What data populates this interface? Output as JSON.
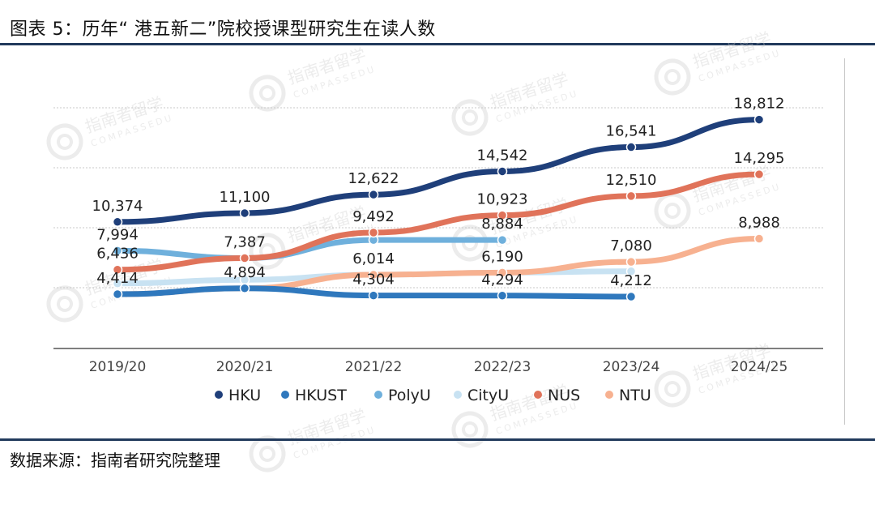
{
  "title": "图表 5：历年“ 港五新二”院校授课型研究生在读人数",
  "source": "数据来源：指南者研究院整理",
  "watermark": {
    "main": "指南者留学",
    "sub": "COMPASSEDU"
  },
  "chart_data": {
    "type": "line",
    "categories": [
      "2019/20",
      "2020/21",
      "2021/22",
      "2022/23",
      "2023/24",
      "2024/25"
    ],
    "ylim": [
      0,
      20000
    ],
    "grid": true,
    "legend": "bottom",
    "series": [
      {
        "name": "HKU",
        "color": "#1f3f7a",
        "values": [
          10374,
          11100,
          12622,
          14542,
          16541,
          18812
        ],
        "labels": [
          "10,374",
          "11,100",
          "12,622",
          "14,542",
          "16,541",
          "18,812"
        ]
      },
      {
        "name": "HKUST",
        "color": "#2f78bd",
        "values": [
          4414,
          4894,
          4304,
          4294,
          4212,
          null
        ],
        "labels": [
          "4,414",
          "4,894",
          "4,304",
          "4,294",
          "4,212",
          ""
        ]
      },
      {
        "name": "PolyU",
        "color": "#6fb0dc",
        "values": [
          7994,
          7387,
          8884,
          8884,
          null,
          null
        ],
        "labels": [
          "7,994",
          "7,387",
          "",
          "8,884",
          "",
          ""
        ]
      },
      {
        "name": "CityU",
        "color": "#c8e2f2",
        "values": [
          5300,
          5600,
          6014,
          6190,
          6300,
          null
        ],
        "labels": [
          "",
          "",
          "6,014",
          "6,190",
          "",
          ""
        ]
      },
      {
        "name": "NUS",
        "color": "#e0735a",
        "values": [
          6436,
          7387,
          9492,
          10923,
          12510,
          14295
        ],
        "labels": [
          "6,436",
          "",
          "9,492",
          "10,923",
          "12,510",
          "14,295"
        ]
      },
      {
        "name": "NTU",
        "color": "#f7b190",
        "values": [
          4414,
          4894,
          6014,
          6190,
          7080,
          8988
        ],
        "labels": [
          "",
          "",
          "",
          "",
          "7,080",
          "8,988"
        ]
      }
    ]
  }
}
